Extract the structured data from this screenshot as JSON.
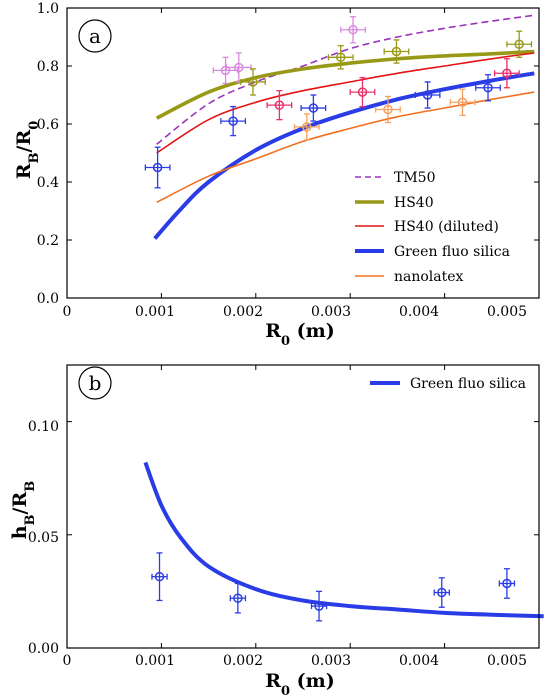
{
  "chart_data": [
    {
      "panel_label": "a",
      "type": "line",
      "xlabel": "R₀ (m)",
      "ylabel": "R_B/R₀",
      "xlim": [
        0,
        0.005
      ],
      "ylim": [
        0,
        1.0
      ],
      "x_ticks": [
        "0",
        "0.001",
        "0.002",
        "0.003",
        "0.004",
        "0.005"
      ],
      "y_ticks": [
        "0.0",
        "0.2",
        "0.4",
        "0.6",
        "0.8",
        "1.0"
      ],
      "grid": false,
      "legend_position": "bottom-right",
      "series": [
        {
          "name": "TM50",
          "color": "#9933bb",
          "style": "dashed",
          "width": 1.6,
          "curve": {
            "x": [
              0.00095,
              0.0015,
              0.002,
              0.0025,
              0.003,
              0.0035,
              0.004,
              0.0045,
              0.00495
            ],
            "y": [
              0.53,
              0.67,
              0.745,
              0.8,
              0.86,
              0.9,
              0.93,
              0.955,
              0.975
            ]
          },
          "points": [
            {
              "x": 0.00168,
              "y": 0.785,
              "xerr": 0.00013,
              "yerr": 0.045
            },
            {
              "x": 0.00182,
              "y": 0.795,
              "xerr": 0.00013,
              "yerr": 0.05
            },
            {
              "x": 0.00303,
              "y": 0.925,
              "xerr": 0.00013,
              "yerr": 0.045
            }
          ],
          "point_color": "#d98ae0"
        },
        {
          "name": "HS40",
          "color": "#999918",
          "style": "solid",
          "width": 3.6,
          "curve": {
            "x": [
              0.00095,
              0.0015,
              0.002,
              0.0025,
              0.003,
              0.0035,
              0.004,
              0.0045,
              0.00495
            ],
            "y": [
              0.62,
              0.71,
              0.76,
              0.79,
              0.81,
              0.825,
              0.835,
              0.842,
              0.85
            ]
          },
          "points": [
            {
              "x": 0.00197,
              "y": 0.745,
              "xerr": 0.00013,
              "yerr": 0.045
            },
            {
              "x": 0.0029,
              "y": 0.83,
              "xerr": 0.00013,
              "yerr": 0.04
            },
            {
              "x": 0.00349,
              "y": 0.85,
              "xerr": 0.00013,
              "yerr": 0.04
            },
            {
              "x": 0.00479,
              "y": 0.875,
              "xerr": 0.00013,
              "yerr": 0.045
            }
          ],
          "point_color": "#999918"
        },
        {
          "name": "HS40 (diluted)",
          "color": "#e41414",
          "style": "solid",
          "width": 1.6,
          "curve": {
            "x": [
              0.00095,
              0.0015,
              0.002,
              0.0025,
              0.003,
              0.0035,
              0.004,
              0.0045,
              0.00495
            ],
            "y": [
              0.5,
              0.615,
              0.675,
              0.715,
              0.745,
              0.775,
              0.8,
              0.825,
              0.845
            ]
          },
          "points": [
            {
              "x": 0.00225,
              "y": 0.665,
              "xerr": 0.00013,
              "yerr": 0.05
            },
            {
              "x": 0.00313,
              "y": 0.71,
              "xerr": 0.00013,
              "yerr": 0.05
            },
            {
              "x": 0.00466,
              "y": 0.775,
              "xerr": 0.00013,
              "yerr": 0.05
            }
          ],
          "point_color": "#e8306a"
        },
        {
          "name": "Green fluo silica",
          "color": "#2a3ce6",
          "style": "solid",
          "width": 4,
          "curve": {
            "x": [
              0.00093,
              0.0012,
              0.0015,
              0.002,
              0.0025,
              0.003,
              0.0035,
              0.004,
              0.0045,
              0.00495
            ],
            "y": [
              0.205,
              0.305,
              0.4,
              0.51,
              0.585,
              0.64,
              0.685,
              0.72,
              0.75,
              0.775
            ]
          },
          "points": [
            {
              "x": 0.00096,
              "y": 0.45,
              "xerr": 0.00013,
              "yerr": 0.07
            },
            {
              "x": 0.00176,
              "y": 0.61,
              "xerr": 0.00013,
              "yerr": 0.05
            },
            {
              "x": 0.00261,
              "y": 0.655,
              "xerr": 0.00013,
              "yerr": 0.045
            },
            {
              "x": 0.00382,
              "y": 0.7,
              "xerr": 0.00013,
              "yerr": 0.045
            },
            {
              "x": 0.00446,
              "y": 0.725,
              "xerr": 0.00013,
              "yerr": 0.045
            }
          ],
          "point_color": "#2a3ce6"
        },
        {
          "name": "nanolatex",
          "color": "#f07020",
          "style": "solid",
          "width": 1.6,
          "curve": {
            "x": [
              0.00095,
              0.0015,
              0.002,
              0.0025,
              0.003,
              0.0035,
              0.004,
              0.0045,
              0.00495
            ],
            "y": [
              0.33,
              0.42,
              0.48,
              0.54,
              0.585,
              0.625,
              0.655,
              0.685,
              0.71
            ]
          },
          "points": [
            {
              "x": 0.00254,
              "y": 0.59,
              "xerr": 0.00013,
              "yerr": 0.045
            },
            {
              "x": 0.0034,
              "y": 0.65,
              "xerr": 0.00013,
              "yerr": 0.045
            },
            {
              "x": 0.00419,
              "y": 0.675,
              "xerr": 0.00013,
              "yerr": 0.045
            }
          ],
          "point_color": "#f5a060"
        }
      ]
    },
    {
      "panel_label": "b",
      "type": "line",
      "xlabel": "R₀ (m)",
      "ylabel": "h_B/R_B",
      "xlim": [
        0,
        0.005
      ],
      "ylim": [
        0,
        0.125
      ],
      "x_ticks": [
        "0",
        "0.001",
        "0.002",
        "0.003",
        "0.004",
        "0.005"
      ],
      "y_ticks": [
        "0.00",
        "0.05",
        "0.10"
      ],
      "grid": false,
      "legend_position": "top-right",
      "series": [
        {
          "name": "Green fluo silica",
          "color": "#2a3ce6",
          "style": "solid",
          "width": 4,
          "curve": {
            "x": [
              0.00083,
              0.001,
              0.0012,
              0.0015,
              0.002,
              0.0025,
              0.003,
              0.0035,
              0.004,
              0.0045,
              0.00505
            ],
            "y": [
              0.082,
              0.063,
              0.049,
              0.036,
              0.026,
              0.021,
              0.0185,
              0.017,
              0.0155,
              0.0147,
              0.014
            ]
          },
          "points": [
            {
              "x": 0.00098,
              "y": 0.0315,
              "xerr": 8e-05,
              "yerr": 0.0105
            },
            {
              "x": 0.00181,
              "y": 0.022,
              "xerr": 8e-05,
              "yerr": 0.0065
            },
            {
              "x": 0.00267,
              "y": 0.0185,
              "xerr": 8e-05,
              "yerr": 0.0065
            },
            {
              "x": 0.00397,
              "y": 0.0245,
              "xerr": 8e-05,
              "yerr": 0.0065
            },
            {
              "x": 0.00466,
              "y": 0.0285,
              "xerr": 8e-05,
              "yerr": 0.0065
            }
          ],
          "point_color": "#2a3ce6"
        }
      ]
    }
  ]
}
